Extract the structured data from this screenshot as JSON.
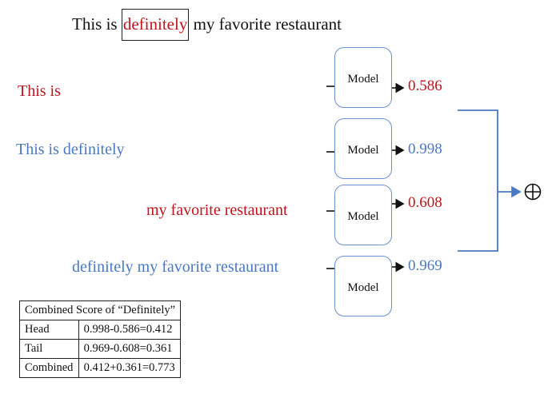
{
  "sentence": {
    "before": "This is ",
    "highlight": "definitely",
    "after": " my favorite restaurant"
  },
  "segments": [
    {
      "text": "This is",
      "model_label": "Model",
      "score": "0.586",
      "color": "#c0141c"
    },
    {
      "text": "This is definitely",
      "model_label": "Model",
      "score": "0.998",
      "color": "#4a78c2"
    },
    {
      "text": "my favorite restaurant",
      "model_label": "Model",
      "score": "0.608",
      "color": "#c0141c"
    },
    {
      "text": "definitely my favorite restaurant",
      "model_label": "Model",
      "score": "0.969",
      "color": "#4a78c2"
    }
  ],
  "combine_operator": "⊕",
  "score_table": {
    "title": "Combined Score of “Definitely”",
    "rows": [
      {
        "label": "Head",
        "value": "0.998-0.586=0.412"
      },
      {
        "label": "Tail",
        "value": "0.969-0.608=0.361"
      },
      {
        "label": "Combined",
        "value": "0.412+0.361=0.773"
      }
    ]
  }
}
